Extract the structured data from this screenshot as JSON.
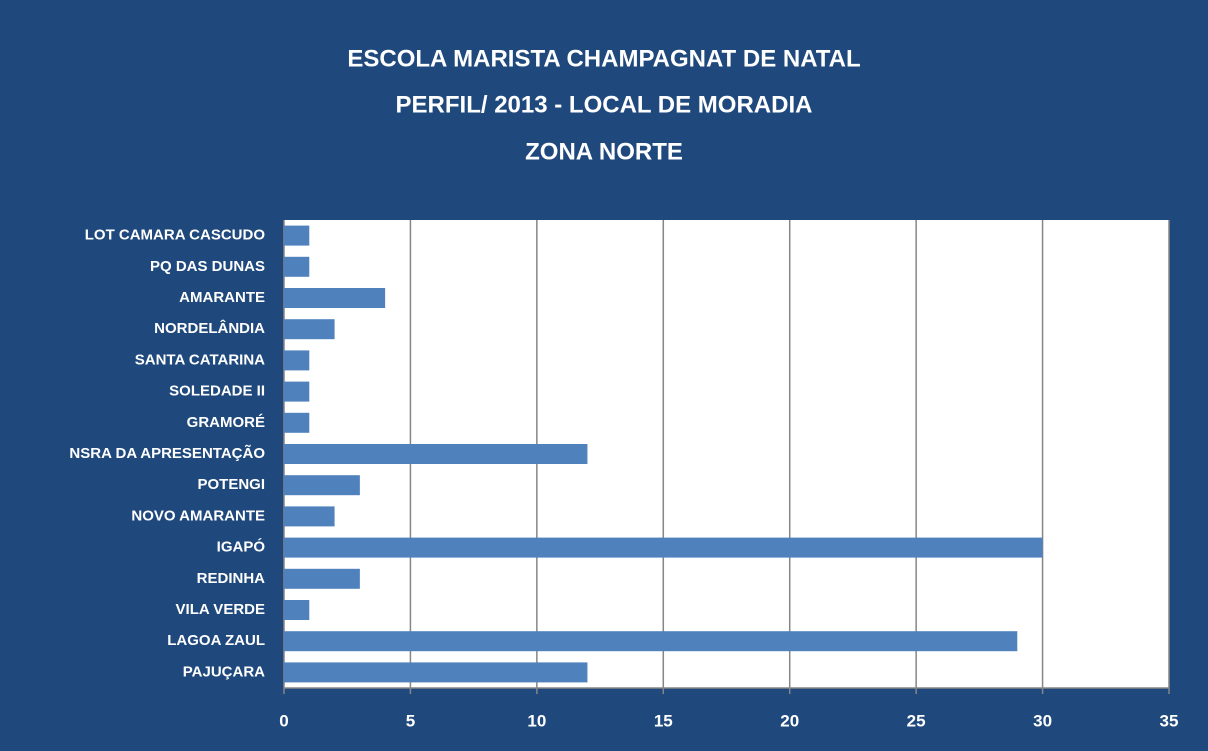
{
  "chart_data": {
    "type": "bar",
    "orientation": "horizontal",
    "title": [
      "ESCOLA MARISTA CHAMPAGNAT DE NATAL",
      "PERFIL/ 2013 - LOCAL DE MORADIA",
      "ZONA NORTE"
    ],
    "categories": [
      "LOT CAMARA CASCUDO",
      "PQ DAS DUNAS",
      "AMARANTE",
      "NORDELÂNDIA",
      "SANTA CATARINA",
      "SOLEDADE II",
      "GRAMORÉ",
      "NSRA DA APRESENTAÇÃO",
      "POTENGI",
      "NOVO AMARANTE",
      "IGAPÓ",
      "REDINHA",
      "VILA VERDE",
      "LAGOA ZAUL",
      "PAJUÇARA"
    ],
    "values": [
      1,
      1,
      4,
      2,
      1,
      1,
      1,
      12,
      3,
      2,
      30,
      3,
      1,
      29,
      12
    ],
    "color": "#4f81bd",
    "xlim": [
      0,
      35
    ],
    "xticks": [
      0,
      5,
      10,
      15,
      20,
      25,
      30,
      35
    ],
    "grid": true
  }
}
